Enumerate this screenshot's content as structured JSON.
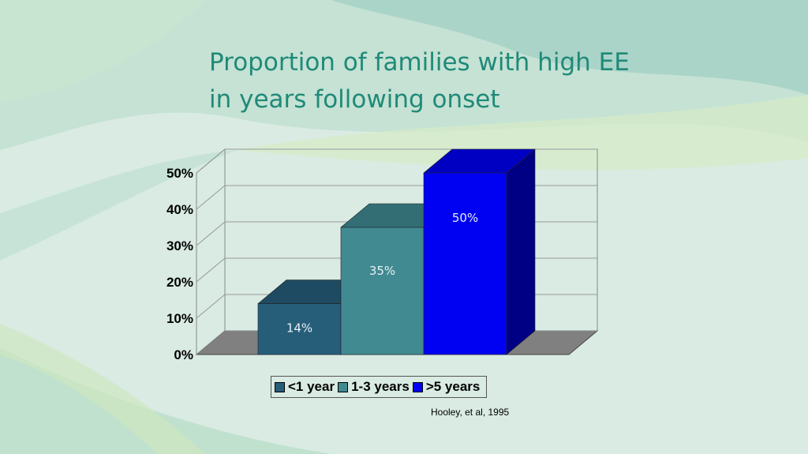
{
  "slide": {
    "title_line1": "Proportion of families with high EE",
    "title_line2": "in years following onset",
    "citation": "Hooley, et al, 1995"
  },
  "colors": {
    "title": "#1f8a78",
    "series": [
      "#265e7a",
      "#418a92",
      "#0000f2"
    ]
  },
  "chart_data": {
    "type": "bar",
    "three_d": true,
    "categories": [
      "<1 year",
      "1-3 years",
      ">5 years"
    ],
    "values": [
      14,
      35,
      50
    ],
    "value_labels": [
      "14%",
      "35%",
      "50%"
    ],
    "ylim": [
      0,
      50
    ],
    "yticks": [
      "0%",
      "10%",
      "20%",
      "30%",
      "40%",
      "50%"
    ],
    "grid": true,
    "legend_position": "bottom"
  }
}
